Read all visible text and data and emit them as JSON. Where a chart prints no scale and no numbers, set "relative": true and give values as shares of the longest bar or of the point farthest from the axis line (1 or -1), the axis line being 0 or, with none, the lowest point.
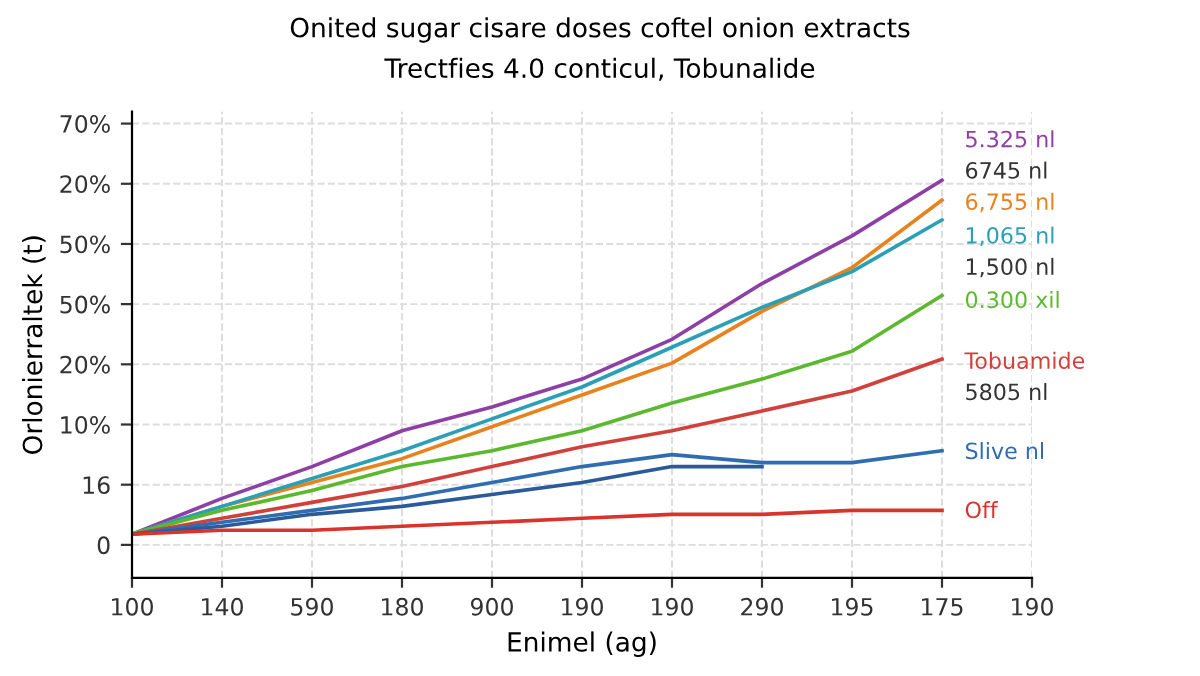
{
  "chart_data": {
    "type": "line",
    "relative": true,
    "title": "Onited sugar cisare doses coftel onion extracts",
    "subtitle": "Trectfies 4.0 conticul, Tobunalide",
    "xlabel": "Enimel (ag)",
    "ylabel": "Orlonierraltek (t)",
    "categories": [
      "100",
      "140",
      "590",
      "180",
      "900",
      "190",
      "190",
      "290",
      "195",
      "175",
      "190"
    ],
    "grid": true,
    "line_style": "solid",
    "marker": "none",
    "series": [
      {
        "name": "5.325 nl",
        "color": "#8e3fa6",
        "values": [
          0.11,
          0.2,
          0.28,
          0.37,
          0.43,
          0.5,
          0.6,
          0.74,
          0.86,
          1.0,
          null
        ]
      },
      {
        "name": "6,755 nl",
        "color": "#e8821e",
        "values": [
          0.11,
          0.18,
          0.24,
          0.3,
          0.38,
          0.46,
          0.54,
          0.67,
          0.78,
          0.95,
          null
        ]
      },
      {
        "name": "1,065 nl",
        "color": "#2a9fb5",
        "values": [
          0.11,
          0.18,
          0.25,
          0.32,
          0.4,
          0.48,
          0.58,
          0.68,
          0.77,
          0.9,
          null
        ]
      },
      {
        "name": "0.300 xil",
        "color": "#5cb82e",
        "values": [
          0.11,
          0.17,
          0.22,
          0.28,
          0.32,
          0.37,
          0.44,
          0.5,
          0.57,
          0.71,
          null
        ]
      },
      {
        "name": "Tobuamide",
        "color": "#d0413c",
        "values": [
          0.11,
          0.15,
          0.19,
          0.23,
          0.28,
          0.33,
          0.37,
          0.42,
          0.47,
          0.55,
          null
        ]
      },
      {
        "name": "Slive nl",
        "color": "#2f6db0",
        "values": [
          0.11,
          0.14,
          0.17,
          0.2,
          0.24,
          0.28,
          0.31,
          0.29,
          0.29,
          0.32,
          null
        ]
      },
      {
        "color": "#2a5a9a",
        "values": [
          0.11,
          0.13,
          0.16,
          0.18,
          0.21,
          0.24,
          0.28,
          0.28,
          null,
          null,
          null
        ]
      },
      {
        "name": "Off",
        "color": "#d9342b",
        "values": [
          0.11,
          0.12,
          0.12,
          0.13,
          0.14,
          0.15,
          0.16,
          0.16,
          0.17,
          0.17,
          null
        ]
      }
    ],
    "annotations": [
      "6745 nl",
      "1,500 nl",
      "5805 nl",
      "0",
      "16",
      "10%",
      "20%",
      "50%",
      "50%",
      "20%",
      "70%"
    ]
  }
}
